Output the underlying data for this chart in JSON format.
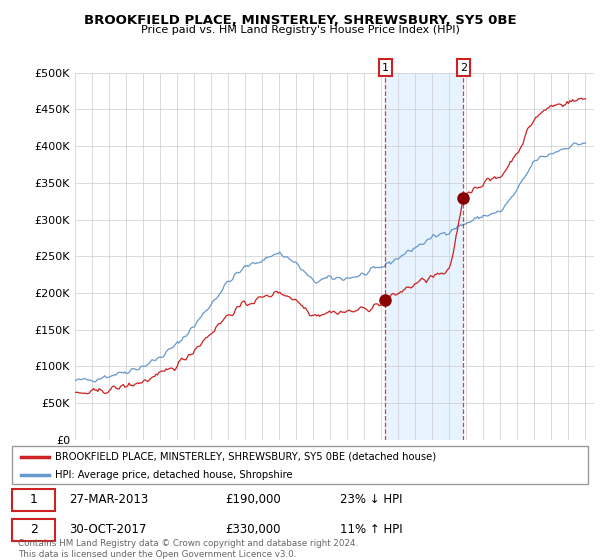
{
  "title": "BROOKFIELD PLACE, MINSTERLEY, SHREWSBURY, SY5 0BE",
  "subtitle": "Price paid vs. HM Land Registry's House Price Index (HPI)",
  "ylim": [
    0,
    500000
  ],
  "yticks": [
    0,
    50000,
    100000,
    150000,
    200000,
    250000,
    300000,
    350000,
    400000,
    450000,
    500000
  ],
  "ytick_labels": [
    "£0",
    "£50K",
    "£100K",
    "£150K",
    "£200K",
    "£250K",
    "£300K",
    "£350K",
    "£400K",
    "£450K",
    "£500K"
  ],
  "xlim_start": 1995.0,
  "xlim_end": 2025.5,
  "hpi_color": "#6699cc",
  "price_color": "#cc2222",
  "shade_color": "#ddeeff",
  "sale1_x": 2013.24,
  "sale1_y": 190000,
  "sale2_x": 2017.83,
  "sale2_y": 330000,
  "legend_line1": "BROOKFIELD PLACE, MINSTERLEY, SHREWSBURY, SY5 0BE (detached house)",
  "legend_line2": "HPI: Average price, detached house, Shropshire",
  "note1_date": "27-MAR-2013",
  "note1_price": "£190,000",
  "note1_hpi": "23% ↓ HPI",
  "note2_date": "30-OCT-2017",
  "note2_price": "£330,000",
  "note2_hpi": "11% ↑ HPI",
  "footer": "Contains HM Land Registry data © Crown copyright and database right 2024.\nThis data is licensed under the Open Government Licence v3.0.",
  "background_color": "#ffffff",
  "grid_color": "#cccccc"
}
